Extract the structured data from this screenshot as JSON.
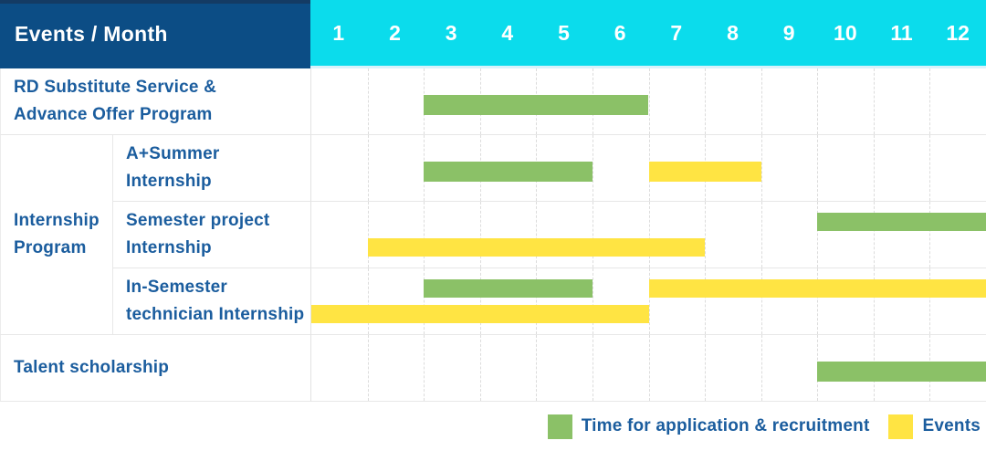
{
  "palette": {
    "header_bg": "#0c4d85",
    "header_top_band": "#143b64",
    "months_bg": "#0bdcec",
    "label_text": "#1b5d9e",
    "green": "#8bc167",
    "yellow": "#ffe443",
    "grid_dashed": "#dcdcdc",
    "row_border": "#e7e7e7",
    "header_text": "#ffffff"
  },
  "chart_data": {
    "type": "bar",
    "subtype": "gantt-schedule",
    "title": "Events / Month",
    "x_label": "Month",
    "x_ticks": [
      "1",
      "2",
      "3",
      "4",
      "5",
      "6",
      "7",
      "8",
      "9",
      "10",
      "11",
      "12"
    ],
    "x_range": [
      1,
      12
    ],
    "grid": true,
    "legend_position": "bottom-right",
    "legend": [
      {
        "name": "Time for application & recruitment",
        "key": "green",
        "color": "#8bc167"
      },
      {
        "name": "Events",
        "key": "yellow",
        "color": "#ffe443"
      }
    ],
    "group": {
      "id": "internship-program",
      "label_lines": [
        "Internship",
        "Program"
      ],
      "member_rows": [
        "A+Summer Internship",
        "Semester project Internship",
        "In-Semester technician Internship"
      ]
    },
    "rows": [
      {
        "id": "rd-substitute-service",
        "event": "RD Substitute Service & Advance Offer Program",
        "label_lines": [
          "RD Substitute Service &",
          "Advance Offer Program"
        ],
        "grouped": false,
        "bars": [
          {
            "series": "Time for application & recruitment",
            "key": "green",
            "start_month": 3,
            "end_month": 6,
            "track": 0
          }
        ]
      },
      {
        "id": "a-plus-summer-internship",
        "event": "A+Summer Internship",
        "label_lines": [
          "A+Summer",
          "Internship"
        ],
        "grouped": true,
        "bars": [
          {
            "series": "Time for application & recruitment",
            "key": "green",
            "start_month": 3,
            "end_month": 5,
            "track": 0
          },
          {
            "series": "Events",
            "key": "yellow",
            "start_month": 7,
            "end_month": 8,
            "track": 0
          }
        ]
      },
      {
        "id": "semester-project-internship",
        "event": "Semester project Internship",
        "label_lines": [
          "Semester project",
          "Internship"
        ],
        "grouped": true,
        "bars": [
          {
            "series": "Time for application & recruitment",
            "key": "green",
            "start_month": 10,
            "end_month": 12,
            "track": 0
          },
          {
            "series": "Events",
            "key": "yellow",
            "start_month": 2,
            "end_month": 7,
            "track": 1
          }
        ]
      },
      {
        "id": "in-semester-technician-internship",
        "event": "In-Semester technician Internship",
        "label_lines": [
          "In-Semester",
          "technician Internship"
        ],
        "grouped": true,
        "bars": [
          {
            "series": "Time for application & recruitment",
            "key": "green",
            "start_month": 3,
            "end_month": 5,
            "track": 0
          },
          {
            "series": "Events",
            "key": "yellow",
            "start_month": 7,
            "end_month": 12,
            "track": 0
          },
          {
            "series": "Events",
            "key": "yellow",
            "start_month": 1,
            "end_month": 6,
            "track": 1
          }
        ]
      },
      {
        "id": "talent-scholarship",
        "event": "Talent scholarship",
        "label_lines": [
          "Talent scholarship"
        ],
        "grouped": false,
        "bars": [
          {
            "series": "Time for application & recruitment",
            "key": "green",
            "start_month": 10,
            "end_month": 12,
            "track": 0
          }
        ]
      }
    ]
  }
}
